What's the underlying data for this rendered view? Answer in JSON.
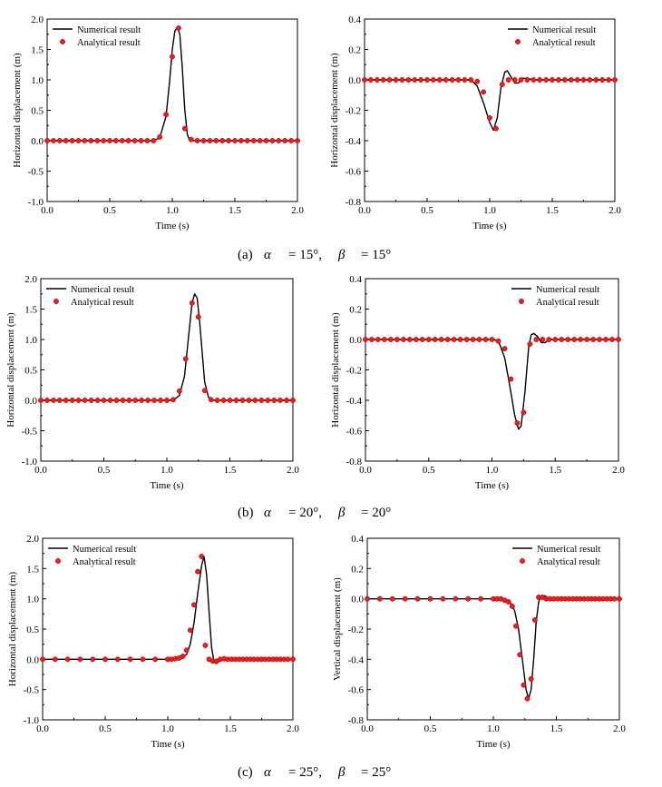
{
  "legend": {
    "numerical": "Numerical result",
    "analytical": "Analytical result"
  },
  "captions": [
    {
      "label": "(a)",
      "sym1": "α",
      "val1": "= 15°,",
      "sym2": "β",
      "val2": "= 15°"
    },
    {
      "label": "(b)",
      "sym1": "α",
      "val1": "= 20°,",
      "sym2": "β",
      "val2": "= 20°"
    },
    {
      "label": "(c)",
      "sym1": "α",
      "val1": "= 25°,",
      "sym2": "β",
      "val2": "= 25°"
    }
  ],
  "colors": {
    "numerical_line": "#000000",
    "analytical_marker": "#ee1c1c",
    "marker_edge": "#a00000"
  },
  "chart_data": [
    {
      "type": "line",
      "panel": "a-left",
      "xlabel": "Time (s)",
      "ylabel": "Horizontal displacement (m)",
      "xlim": [
        0.0,
        2.0
      ],
      "ylim": [
        -1.0,
        2.0
      ],
      "xticks": [
        0.0,
        0.5,
        1.0,
        1.5,
        2.0
      ],
      "xtick_labels": [
        "0.0",
        "0.5",
        "1.0",
        "1.5",
        "2.0"
      ],
      "yticks": [
        -1.0,
        -0.5,
        0.0,
        0.5,
        1.0,
        1.5,
        2.0
      ],
      "ytick_labels": [
        "-1.0",
        "-0.5",
        "0.0",
        "0.5",
        "1.0",
        "1.5",
        "2.0"
      ],
      "legend_position": "top-left",
      "grid": false,
      "series": [
        {
          "name": "Numerical result",
          "style": "line",
          "x": [
            0.0,
            0.85,
            0.9,
            0.95,
            0.98,
            1.0,
            1.02,
            1.04,
            1.06,
            1.08,
            1.1,
            1.12,
            1.14,
            1.2,
            2.0
          ],
          "y": [
            0.0,
            0.0,
            0.05,
            0.4,
            1.0,
            1.5,
            1.8,
            1.87,
            1.75,
            1.2,
            0.5,
            0.1,
            0.0,
            0.0,
            0.0
          ]
        },
        {
          "name": "Analytical result",
          "style": "markers",
          "x": [
            0.0,
            0.05,
            0.1,
            0.15,
            0.2,
            0.25,
            0.3,
            0.35,
            0.4,
            0.45,
            0.5,
            0.55,
            0.6,
            0.65,
            0.7,
            0.75,
            0.8,
            0.85,
            0.9,
            0.95,
            1.0,
            1.05,
            1.1,
            1.15,
            1.2,
            1.25,
            1.3,
            1.35,
            1.4,
            1.45,
            1.5,
            1.55,
            1.6,
            1.65,
            1.7,
            1.75,
            1.8,
            1.85,
            1.9,
            1.95,
            2.0
          ],
          "y": [
            0,
            0,
            0,
            0,
            0,
            0,
            0,
            0,
            0,
            0,
            0,
            0,
            0,
            0,
            0,
            0,
            0,
            0,
            0.06,
            0.43,
            1.38,
            1.85,
            0.2,
            0.02,
            0,
            0,
            0,
            0,
            0,
            0,
            0,
            0,
            0,
            0,
            0,
            0,
            0,
            0,
            0,
            0,
            0
          ]
        }
      ]
    },
    {
      "type": "line",
      "panel": "a-right",
      "xlabel": "Time (s)",
      "ylabel": "Horizontal displacement (m)",
      "xlim": [
        0.0,
        2.0
      ],
      "ylim": [
        -0.8,
        0.4
      ],
      "xticks": [
        0.0,
        0.5,
        1.0,
        1.5,
        2.0
      ],
      "xtick_labels": [
        "0.0",
        "0.5",
        "1.0",
        "1.5",
        "2.0"
      ],
      "yticks": [
        -0.8,
        -0.6,
        -0.4,
        -0.2,
        0.0,
        0.2,
        0.4
      ],
      "ytick_labels": [
        "-0.8",
        "-0.6",
        "-0.4",
        "-0.2",
        "0.0",
        "0.2",
        "0.4"
      ],
      "legend_position": "top-right",
      "grid": false,
      "series": [
        {
          "name": "Numerical result",
          "style": "line",
          "x": [
            0.0,
            0.85,
            0.9,
            0.95,
            1.0,
            1.03,
            1.06,
            1.09,
            1.12,
            1.14,
            1.17,
            1.2,
            1.23,
            1.26,
            1.3,
            1.35,
            1.4,
            2.0
          ],
          "y": [
            0.0,
            0.0,
            -0.04,
            -0.15,
            -0.28,
            -0.33,
            -0.25,
            -0.05,
            0.05,
            0.06,
            0.02,
            -0.02,
            -0.02,
            0.01,
            0.01,
            0.0,
            0.0,
            0.0
          ]
        },
        {
          "name": "Analytical result",
          "style": "markers",
          "x": [
            0.0,
            0.05,
            0.1,
            0.15,
            0.2,
            0.25,
            0.3,
            0.35,
            0.4,
            0.45,
            0.5,
            0.55,
            0.6,
            0.65,
            0.7,
            0.75,
            0.8,
            0.85,
            0.9,
            0.95,
            1.0,
            1.05,
            1.1,
            1.15,
            1.2,
            1.25,
            1.3,
            1.35,
            1.4,
            1.45,
            1.5,
            1.55,
            1.6,
            1.65,
            1.7,
            1.75,
            1.8,
            1.85,
            1.9,
            1.95,
            2.0
          ],
          "y": [
            0,
            0,
            0,
            0,
            0,
            0,
            0,
            0,
            0,
            0,
            0,
            0,
            0,
            0,
            0,
            0,
            0,
            0,
            -0.01,
            -0.08,
            -0.25,
            -0.32,
            -0.03,
            0.0,
            0,
            0,
            0,
            0,
            0,
            0,
            0,
            0,
            0,
            0,
            0,
            0,
            0,
            0,
            0,
            0,
            0
          ]
        }
      ]
    },
    {
      "type": "line",
      "panel": "b-left",
      "xlabel": "Time (s)",
      "ylabel": "Horizontal displacement (m)",
      "xlim": [
        0.0,
        2.0
      ],
      "ylim": [
        -1.0,
        2.0
      ],
      "xticks": [
        0.0,
        0.5,
        1.0,
        1.5,
        2.0
      ],
      "xtick_labels": [
        "0.0",
        "0.5",
        "1.0",
        "1.5",
        "2.0"
      ],
      "yticks": [
        -1.0,
        -0.5,
        0.0,
        0.5,
        1.0,
        1.5,
        2.0
      ],
      "ytick_labels": [
        "-1.0",
        "-0.5",
        "0.0",
        "0.5",
        "1.0",
        "1.5",
        "2.0"
      ],
      "legend_position": "top-left",
      "grid": false,
      "series": [
        {
          "name": "Numerical result",
          "style": "line",
          "x": [
            0.0,
            1.05,
            1.1,
            1.14,
            1.17,
            1.2,
            1.22,
            1.24,
            1.26,
            1.28,
            1.3,
            1.33,
            1.36,
            2.0
          ],
          "y": [
            0.0,
            0.0,
            0.08,
            0.4,
            1.0,
            1.6,
            1.75,
            1.68,
            1.3,
            0.8,
            0.3,
            0.05,
            0.0,
            0.0
          ]
        },
        {
          "name": "Analytical result",
          "style": "markers",
          "x": [
            0.0,
            0.05,
            0.1,
            0.15,
            0.2,
            0.25,
            0.3,
            0.35,
            0.4,
            0.45,
            0.5,
            0.55,
            0.6,
            0.65,
            0.7,
            0.75,
            0.8,
            0.85,
            0.9,
            0.95,
            1.0,
            1.05,
            1.1,
            1.15,
            1.2,
            1.25,
            1.3,
            1.35,
            1.4,
            1.45,
            1.5,
            1.55,
            1.6,
            1.65,
            1.7,
            1.75,
            1.8,
            1.85,
            1.9,
            1.95,
            2.0
          ],
          "y": [
            0,
            0,
            0,
            0,
            0,
            0,
            0,
            0,
            0,
            0,
            0,
            0,
            0,
            0,
            0,
            0,
            0,
            0,
            0,
            0,
            0,
            0.01,
            0.15,
            0.68,
            1.6,
            1.37,
            0.16,
            0.01,
            0,
            0,
            0,
            0,
            0,
            0,
            0,
            0,
            0,
            0,
            0,
            0,
            0
          ]
        }
      ]
    },
    {
      "type": "line",
      "panel": "b-right",
      "xlabel": "Time (s)",
      "ylabel": "Horizontal displacement (m)",
      "xlim": [
        0.0,
        2.0
      ],
      "ylim": [
        -0.8,
        0.4
      ],
      "xticks": [
        0.0,
        0.5,
        1.0,
        1.5,
        2.0
      ],
      "xtick_labels": [
        "0.0",
        "0.5",
        "1.0",
        "1.5",
        "2.0"
      ],
      "yticks": [
        -0.8,
        -0.6,
        -0.4,
        -0.2,
        0.0,
        0.2,
        0.4
      ],
      "ytick_labels": [
        "-0.8",
        "-0.6",
        "-0.4",
        "-0.2",
        "0.0",
        "0.2",
        "0.4"
      ],
      "legend_position": "top-right",
      "grid": false,
      "series": [
        {
          "name": "Numerical result",
          "style": "line",
          "x": [
            0.0,
            1.02,
            1.06,
            1.1,
            1.14,
            1.18,
            1.21,
            1.23,
            1.26,
            1.29,
            1.31,
            1.33,
            1.36,
            1.39,
            1.42,
            1.45,
            1.5,
            2.0
          ],
          "y": [
            0.0,
            0.0,
            -0.03,
            -0.12,
            -0.3,
            -0.5,
            -0.59,
            -0.57,
            -0.35,
            -0.05,
            0.03,
            0.04,
            0.02,
            -0.02,
            -0.02,
            0.0,
            0.0,
            0.0
          ]
        },
        {
          "name": "Analytical result",
          "style": "markers",
          "x": [
            0.0,
            0.05,
            0.1,
            0.15,
            0.2,
            0.25,
            0.3,
            0.35,
            0.4,
            0.45,
            0.5,
            0.55,
            0.6,
            0.65,
            0.7,
            0.75,
            0.8,
            0.85,
            0.9,
            0.95,
            1.0,
            1.05,
            1.1,
            1.15,
            1.2,
            1.25,
            1.3,
            1.35,
            1.4,
            1.45,
            1.5,
            1.55,
            1.6,
            1.65,
            1.7,
            1.75,
            1.8,
            1.85,
            1.9,
            1.95,
            2.0
          ],
          "y": [
            0,
            0,
            0,
            0,
            0,
            0,
            0,
            0,
            0,
            0,
            0,
            0,
            0,
            0,
            0,
            0,
            0,
            0,
            0,
            0,
            0,
            -0.01,
            -0.06,
            -0.26,
            -0.55,
            -0.48,
            -0.03,
            0.0,
            0,
            0,
            0,
            0,
            0,
            0,
            0,
            0,
            0,
            0,
            0,
            0,
            0
          ]
        }
      ]
    },
    {
      "type": "line",
      "panel": "c-left",
      "xlabel": "Time (s)",
      "ylabel": "Horizontal displacement (m)",
      "xlim": [
        0.0,
        2.0
      ],
      "ylim": [
        -1.0,
        2.0
      ],
      "xticks": [
        0.0,
        0.5,
        1.0,
        1.5,
        2.0
      ],
      "xtick_labels": [
        "0.0",
        "0.5",
        "1.0",
        "1.5",
        "2.0"
      ],
      "yticks": [
        -1.0,
        -0.5,
        0.0,
        0.5,
        1.0,
        1.5,
        2.0
      ],
      "ytick_labels": [
        "-1.0",
        "-0.5",
        "0.0",
        "0.5",
        "1.0",
        "1.5",
        "2.0"
      ],
      "legend_position": "top-left",
      "grid": false,
      "series": [
        {
          "name": "Numerical result",
          "style": "line",
          "x": [
            0.0,
            1.1,
            1.15,
            1.18,
            1.21,
            1.24,
            1.27,
            1.29,
            1.31,
            1.33,
            1.35,
            1.37,
            1.39,
            1.42,
            1.45,
            1.48,
            1.52,
            2.0
          ],
          "y": [
            0.0,
            0.0,
            0.08,
            0.25,
            0.6,
            1.1,
            1.55,
            1.7,
            1.4,
            0.8,
            0.2,
            -0.05,
            -0.07,
            -0.02,
            0.02,
            0.01,
            0.0,
            0.0
          ]
        },
        {
          "name": "Analytical result",
          "style": "markers",
          "x": [
            0.0,
            0.1,
            0.2,
            0.3,
            0.4,
            0.5,
            0.6,
            0.7,
            0.8,
            0.9,
            1.0,
            1.03,
            1.06,
            1.09,
            1.12,
            1.15,
            1.18,
            1.21,
            1.24,
            1.27,
            1.3,
            1.33,
            1.36,
            1.39,
            1.42,
            1.45,
            1.48,
            1.51,
            1.54,
            1.57,
            1.6,
            1.63,
            1.66,
            1.69,
            1.72,
            1.75,
            1.78,
            1.81,
            1.84,
            1.87,
            1.9,
            1.93,
            1.96,
            2.0
          ],
          "y": [
            0,
            0,
            0,
            0,
            0,
            0,
            0,
            0,
            0,
            0,
            0,
            0,
            0.01,
            0.02,
            0.05,
            0.15,
            0.48,
            0.9,
            1.45,
            1.7,
            0.23,
            0.0,
            -0.03,
            -0.03,
            0.0,
            0.01,
            0.0,
            0,
            0,
            0,
            0,
            0,
            0,
            0,
            0,
            0,
            0,
            0,
            0,
            0,
            0,
            0,
            0,
            0
          ]
        }
      ]
    },
    {
      "type": "line",
      "panel": "c-right",
      "xlabel": "Time (s)",
      "ylabel": "Vertical displacement (m)",
      "xlim": [
        0.0,
        2.0
      ],
      "ylim": [
        -0.8,
        0.4
      ],
      "xticks": [
        0.0,
        0.5,
        1.0,
        1.5,
        2.0
      ],
      "xtick_labels": [
        "0.0",
        "0.5",
        "1.0",
        "1.5",
        "2.0"
      ],
      "yticks": [
        -0.8,
        -0.6,
        -0.4,
        -0.2,
        0.0,
        0.2,
        0.4
      ],
      "ytick_labels": [
        "-0.8",
        "-0.6",
        "-0.4",
        "-0.2",
        "0.0",
        "0.2",
        "0.4"
      ],
      "legend_position": "top-right",
      "grid": false,
      "series": [
        {
          "name": "Numerical result",
          "style": "line",
          "x": [
            0.0,
            1.08,
            1.13,
            1.17,
            1.2,
            1.23,
            1.26,
            1.28,
            1.3,
            1.32,
            1.34,
            1.36,
            1.38,
            1.41,
            1.44,
            1.5,
            2.0
          ],
          "y": [
            0.0,
            0.0,
            -0.02,
            -0.08,
            -0.2,
            -0.4,
            -0.6,
            -0.66,
            -0.6,
            -0.4,
            -0.15,
            -0.02,
            0.02,
            0.02,
            0.0,
            0.0,
            0.0
          ]
        },
        {
          "name": "Analytical result",
          "style": "markers",
          "x": [
            0.0,
            0.1,
            0.2,
            0.3,
            0.4,
            0.5,
            0.6,
            0.7,
            0.8,
            0.9,
            1.0,
            1.03,
            1.06,
            1.09,
            1.12,
            1.15,
            1.18,
            1.21,
            1.24,
            1.27,
            1.3,
            1.33,
            1.36,
            1.39,
            1.42,
            1.45,
            1.48,
            1.51,
            1.54,
            1.57,
            1.6,
            1.63,
            1.66,
            1.69,
            1.72,
            1.75,
            1.78,
            1.81,
            1.84,
            1.87,
            1.9,
            1.93,
            1.96,
            2.0
          ],
          "y": [
            0,
            0,
            0,
            0,
            0,
            0,
            0,
            0,
            0,
            0,
            0,
            0,
            0,
            -0.01,
            -0.02,
            -0.05,
            -0.18,
            -0.37,
            -0.57,
            -0.66,
            -0.53,
            -0.14,
            0.01,
            0.01,
            0.0,
            0,
            0,
            0,
            0,
            0,
            0,
            0,
            0,
            0,
            0,
            0,
            0,
            0,
            0,
            0,
            0,
            0,
            0,
            0
          ]
        }
      ]
    }
  ]
}
